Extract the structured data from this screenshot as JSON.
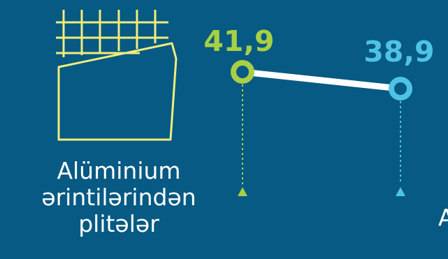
{
  "chart_data": {
    "type": "line",
    "categories": [
      "Alüminium ərintilərindən plitələr",
      "A"
    ],
    "category_lines": [
      [
        "Alüminium",
        "ərintilərindən",
        "plitələr"
      ],
      [
        "A"
      ]
    ],
    "values": [
      41.9,
      38.9
    ],
    "value_labels": [
      "41,9",
      "38,9"
    ],
    "colors": [
      "#a8cf45",
      "#4fc3e6"
    ],
    "line_color": "#ffffff",
    "icon_color": "#f3ec7a",
    "title": "",
    "xlabel": "",
    "ylabel": ""
  },
  "icons": [
    "aluminium-plate-icon"
  ]
}
